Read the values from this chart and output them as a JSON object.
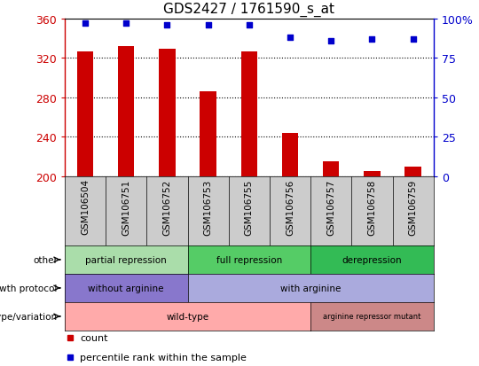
{
  "title": "GDS2427 / 1761590_s_at",
  "samples": [
    "GSM106504",
    "GSM106751",
    "GSM106752",
    "GSM106753",
    "GSM106755",
    "GSM106756",
    "GSM106757",
    "GSM106758",
    "GSM106759"
  ],
  "counts": [
    327,
    332,
    329,
    286,
    327,
    244,
    215,
    205,
    210
  ],
  "percentile_ranks": [
    97,
    97,
    96,
    96,
    96,
    88,
    86,
    87,
    87
  ],
  "ylim_left": [
    200,
    360
  ],
  "ylim_right": [
    0,
    100
  ],
  "yticks_left": [
    200,
    240,
    280,
    320,
    360
  ],
  "yticks_right": [
    0,
    25,
    50,
    75,
    100
  ],
  "bar_color": "#cc0000",
  "dot_color": "#0000cc",
  "bar_width": 0.4,
  "annotations": [
    {
      "label": "other",
      "groups": [
        {
          "text": "partial repression",
          "start": 0,
          "end": 3,
          "color": "#aaddaa"
        },
        {
          "text": "full repression",
          "start": 3,
          "end": 6,
          "color": "#55cc66"
        },
        {
          "text": "derepression",
          "start": 6,
          "end": 9,
          "color": "#33bb55"
        }
      ]
    },
    {
      "label": "growth protocol",
      "groups": [
        {
          "text": "without arginine",
          "start": 0,
          "end": 3,
          "color": "#8877cc"
        },
        {
          "text": "with arginine",
          "start": 3,
          "end": 9,
          "color": "#aaaadd"
        }
      ]
    },
    {
      "label": "genotype/variation",
      "groups": [
        {
          "text": "wild-type",
          "start": 0,
          "end": 6,
          "color": "#ffaaaa"
        },
        {
          "text": "arginine repressor mutant",
          "start": 6,
          "end": 9,
          "color": "#cc8888"
        }
      ]
    }
  ],
  "legend_items": [
    {
      "label": "count",
      "color": "#cc0000"
    },
    {
      "label": "percentile rank within the sample",
      "color": "#0000cc"
    }
  ],
  "left_color": "#cc0000",
  "right_color": "#0000cc"
}
